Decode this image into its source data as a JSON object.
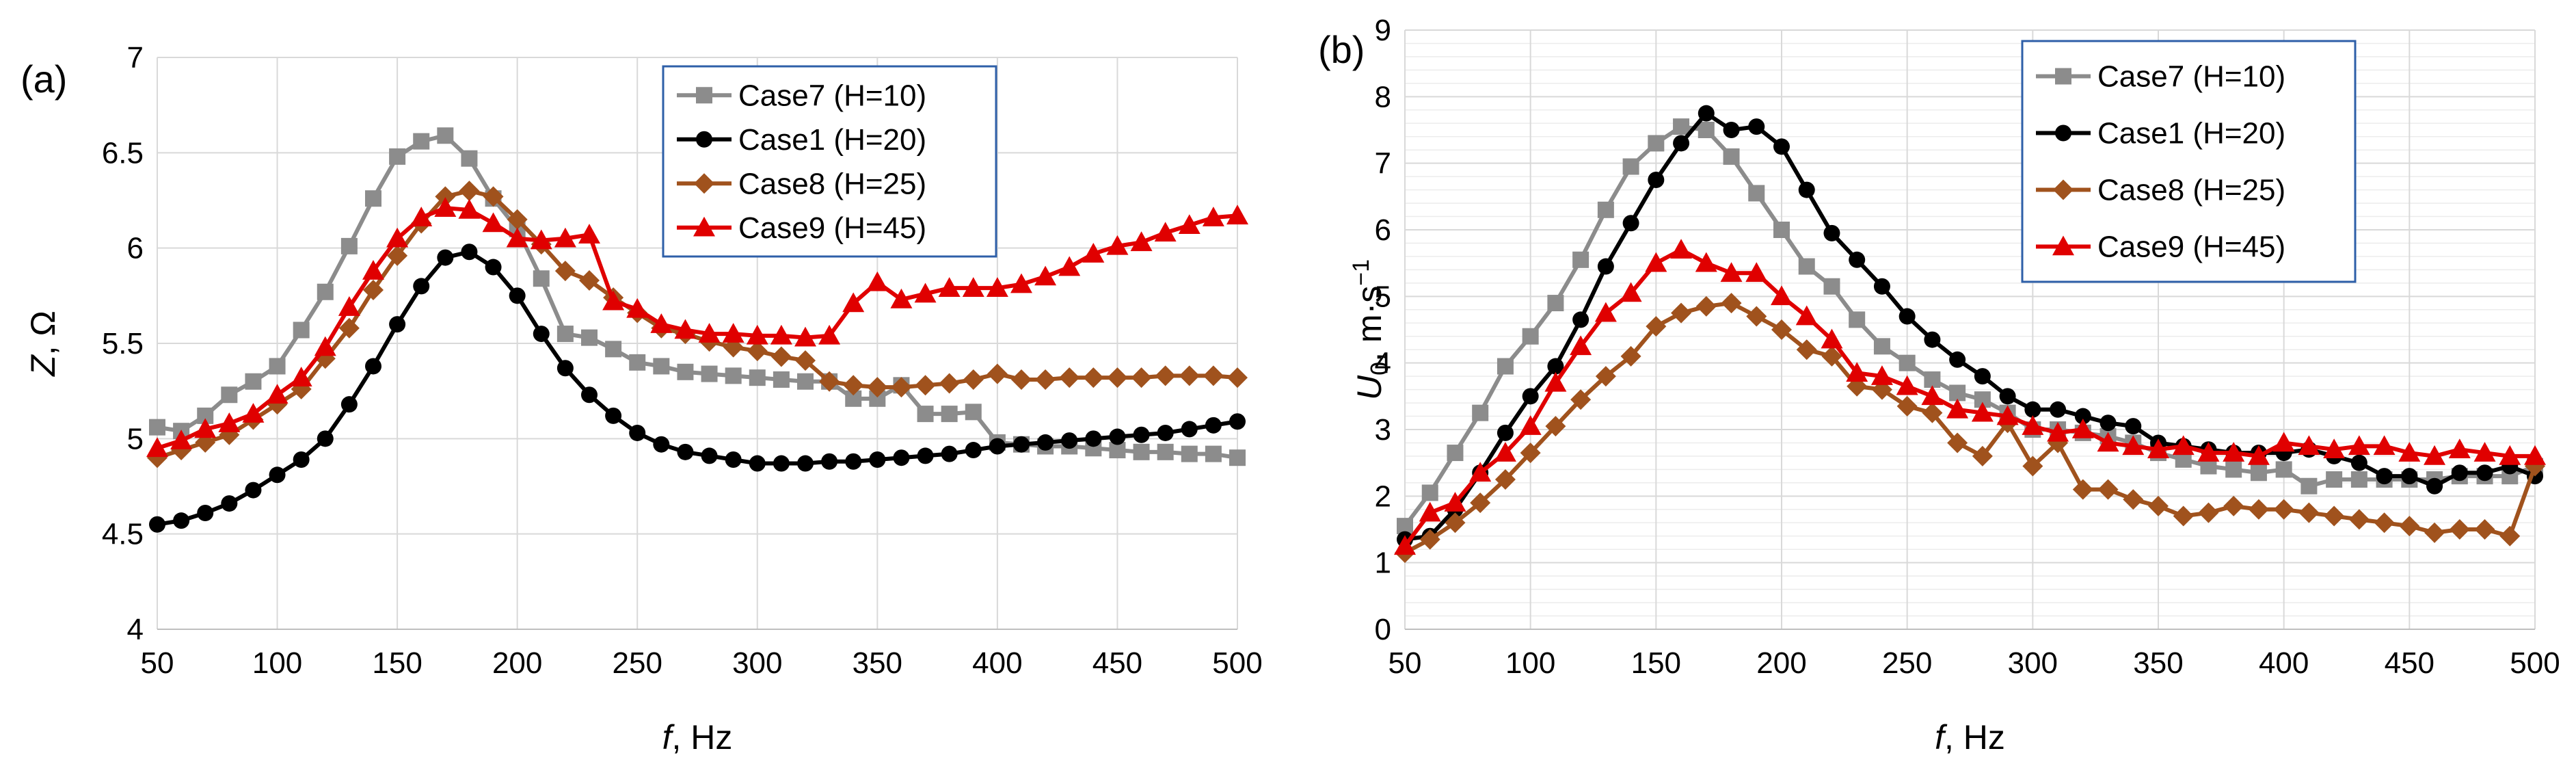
{
  "chart_data": [
    {
      "type": "line",
      "panel_label": "(a)",
      "xlabel": {
        "var": "f",
        "unit": ", Hz"
      },
      "ylabel": {
        "var": "Z",
        "unit": ", Ω"
      },
      "xlim": [
        50,
        500
      ],
      "ylim": [
        4,
        7
      ],
      "x_ticks": [
        50,
        100,
        150,
        200,
        250,
        300,
        350,
        400,
        450,
        500
      ],
      "x_tick_labels": [
        "50",
        "100",
        "150",
        "200",
        "250",
        "300",
        "350",
        "400",
        "450",
        "500"
      ],
      "y_ticks": [
        4,
        4.5,
        5,
        5.5,
        6,
        6.5,
        7
      ],
      "y_tick_labels": [
        "4",
        "4.5",
        "5",
        "5.5",
        "6",
        "6.5",
        "7"
      ],
      "minor_grid": false,
      "legend_position": "top-center",
      "x": [
        50,
        60,
        70,
        80,
        90,
        100,
        110,
        120,
        130,
        140,
        150,
        160,
        170,
        180,
        190,
        200,
        210,
        220,
        230,
        240,
        250,
        260,
        270,
        280,
        290,
        300,
        310,
        320,
        330,
        340,
        350,
        360,
        370,
        380,
        390,
        400,
        410,
        420,
        430,
        440,
        450,
        460,
        470,
        480,
        490,
        500
      ],
      "series": [
        {
          "name": "Case7 (H=10)",
          "color": "#8c8c8c",
          "marker": "square",
          "values": [
            5.06,
            5.04,
            5.12,
            5.23,
            5.3,
            5.38,
            5.57,
            5.77,
            6.01,
            6.26,
            6.48,
            6.56,
            6.59,
            6.47,
            6.26,
            6.1,
            5.84,
            5.55,
            5.53,
            5.47,
            5.4,
            5.38,
            5.35,
            5.34,
            5.33,
            5.32,
            5.31,
            5.3,
            5.3,
            5.21,
            5.21,
            5.28,
            5.13,
            5.13,
            5.14,
            4.98,
            4.97,
            4.96,
            4.96,
            4.95,
            4.94,
            4.93,
            4.93,
            4.92,
            4.92,
            4.9
          ]
        },
        {
          "name": "Case1 (H=20)",
          "color": "#000000",
          "marker": "circle",
          "values": [
            4.55,
            4.57,
            4.61,
            4.66,
            4.73,
            4.81,
            4.89,
            5.0,
            5.18,
            5.38,
            5.6,
            5.8,
            5.95,
            5.98,
            5.9,
            5.75,
            5.55,
            5.37,
            5.23,
            5.12,
            5.03,
            4.97,
            4.93,
            4.91,
            4.89,
            4.87,
            4.87,
            4.87,
            4.88,
            4.88,
            4.89,
            4.9,
            4.91,
            4.92,
            4.94,
            4.96,
            4.97,
            4.98,
            4.99,
            5.0,
            5.01,
            5.02,
            5.03,
            5.05,
            5.07,
            5.09
          ]
        },
        {
          "name": "Case8 (H=25)",
          "color": "#a0521d",
          "marker": "diamond",
          "values": [
            4.9,
            4.94,
            4.98,
            5.02,
            5.1,
            5.18,
            5.26,
            5.42,
            5.58,
            5.78,
            5.96,
            6.13,
            6.27,
            6.3,
            6.27,
            6.15,
            6.02,
            5.88,
            5.83,
            5.74,
            5.66,
            5.58,
            5.55,
            5.51,
            5.48,
            5.46,
            5.43,
            5.41,
            5.3,
            5.28,
            5.27,
            5.27,
            5.28,
            5.29,
            5.31,
            5.34,
            5.31,
            5.31,
            5.32,
            5.32,
            5.32,
            5.32,
            5.33,
            5.33,
            5.33,
            5.32
          ]
        },
        {
          "name": "Case9 (H=45)",
          "color": "#e00000",
          "marker": "triangle",
          "values": [
            4.95,
            4.99,
            5.05,
            5.08,
            5.13,
            5.23,
            5.32,
            5.48,
            5.69,
            5.88,
            6.05,
            6.16,
            6.21,
            6.2,
            6.13,
            6.05,
            6.04,
            6.05,
            6.07,
            5.72,
            5.68,
            5.6,
            5.57,
            5.55,
            5.55,
            5.54,
            5.54,
            5.53,
            5.54,
            5.71,
            5.82,
            5.73,
            5.76,
            5.79,
            5.79,
            5.79,
            5.81,
            5.85,
            5.9,
            5.97,
            6.01,
            6.03,
            6.08,
            6.12,
            6.16,
            6.17
          ]
        }
      ]
    },
    {
      "type": "line",
      "panel_label": "(b)",
      "xlabel": {
        "var": "f",
        "unit": ", Hz"
      },
      "ylabel": {
        "var": "U",
        "sub": "0",
        "unit": ", m·s",
        "sup": "−1"
      },
      "xlim": [
        50,
        500
      ],
      "ylim": [
        0,
        9
      ],
      "x_ticks": [
        50,
        100,
        150,
        200,
        250,
        300,
        350,
        400,
        450,
        500
      ],
      "x_tick_labels": [
        "50",
        "100",
        "150",
        "200",
        "250",
        "300",
        "350",
        "400",
        "450",
        "500"
      ],
      "y_ticks": [
        0,
        1,
        2,
        3,
        4,
        5,
        6,
        7,
        8,
        9
      ],
      "y_tick_labels": [
        "0",
        "1",
        "2",
        "3",
        "4",
        "5",
        "6",
        "7",
        "8",
        "9"
      ],
      "minor_grid": true,
      "legend_position": "top-center",
      "x": [
        50,
        60,
        70,
        80,
        90,
        100,
        110,
        120,
        130,
        140,
        150,
        160,
        170,
        180,
        190,
        200,
        210,
        220,
        230,
        240,
        250,
        260,
        270,
        280,
        290,
        300,
        310,
        320,
        330,
        340,
        350,
        360,
        370,
        380,
        390,
        400,
        410,
        420,
        430,
        440,
        450,
        460,
        470,
        480,
        490,
        500
      ],
      "series": [
        {
          "name": "Case7 (H=10)",
          "color": "#8c8c8c",
          "marker": "square",
          "values": [
            1.55,
            2.05,
            2.65,
            3.25,
            3.95,
            4.4,
            4.9,
            5.55,
            6.3,
            6.95,
            7.3,
            7.55,
            7.5,
            7.1,
            6.55,
            6.0,
            5.45,
            5.15,
            4.65,
            4.25,
            4.0,
            3.75,
            3.55,
            3.45,
            3.25,
            3.0,
            3.0,
            2.95,
            2.9,
            2.8,
            2.65,
            2.55,
            2.45,
            2.4,
            2.35,
            2.4,
            2.15,
            2.25,
            2.25,
            2.25,
            2.25,
            2.25,
            2.3,
            2.3,
            2.3,
            2.45
          ]
        },
        {
          "name": "Case1 (H=20)",
          "color": "#000000",
          "marker": "circle",
          "values": [
            1.35,
            1.4,
            1.8,
            2.35,
            2.95,
            3.5,
            3.95,
            4.65,
            5.45,
            6.1,
            6.75,
            7.3,
            7.75,
            7.5,
            7.55,
            7.25,
            6.6,
            5.95,
            5.55,
            5.15,
            4.7,
            4.35,
            4.05,
            3.8,
            3.5,
            3.3,
            3.3,
            3.2,
            3.1,
            3.05,
            2.8,
            2.75,
            2.7,
            2.65,
            2.65,
            2.65,
            2.7,
            2.6,
            2.5,
            2.3,
            2.3,
            2.15,
            2.35,
            2.35,
            2.45,
            2.3
          ]
        },
        {
          "name": "Case8 (H=25)",
          "color": "#a0521d",
          "marker": "diamond",
          "values": [
            1.15,
            1.35,
            1.6,
            1.9,
            2.25,
            2.65,
            3.05,
            3.45,
            3.8,
            4.1,
            4.55,
            4.75,
            4.85,
            4.9,
            4.7,
            4.5,
            4.2,
            4.1,
            3.65,
            3.6,
            3.35,
            3.25,
            2.8,
            2.6,
            3.1,
            2.45,
            2.8,
            2.1,
            2.1,
            1.95,
            1.85,
            1.7,
            1.75,
            1.85,
            1.8,
            1.8,
            1.75,
            1.7,
            1.65,
            1.6,
            1.55,
            1.45,
            1.5,
            1.5,
            1.4,
            2.45
          ]
        },
        {
          "name": "Case9 (H=45)",
          "color": "#e00000",
          "marker": "triangle",
          "values": [
            1.25,
            1.75,
            1.9,
            2.35,
            2.65,
            3.05,
            3.7,
            4.25,
            4.75,
            5.05,
            5.5,
            5.7,
            5.5,
            5.35,
            5.35,
            5.0,
            4.7,
            4.35,
            3.85,
            3.8,
            3.65,
            3.5,
            3.3,
            3.25,
            3.2,
            3.05,
            2.95,
            3.0,
            2.8,
            2.75,
            2.7,
            2.75,
            2.65,
            2.65,
            2.6,
            2.8,
            2.75,
            2.7,
            2.75,
            2.75,
            2.65,
            2.6,
            2.7,
            2.65,
            2.6,
            2.6
          ]
        }
      ]
    }
  ]
}
